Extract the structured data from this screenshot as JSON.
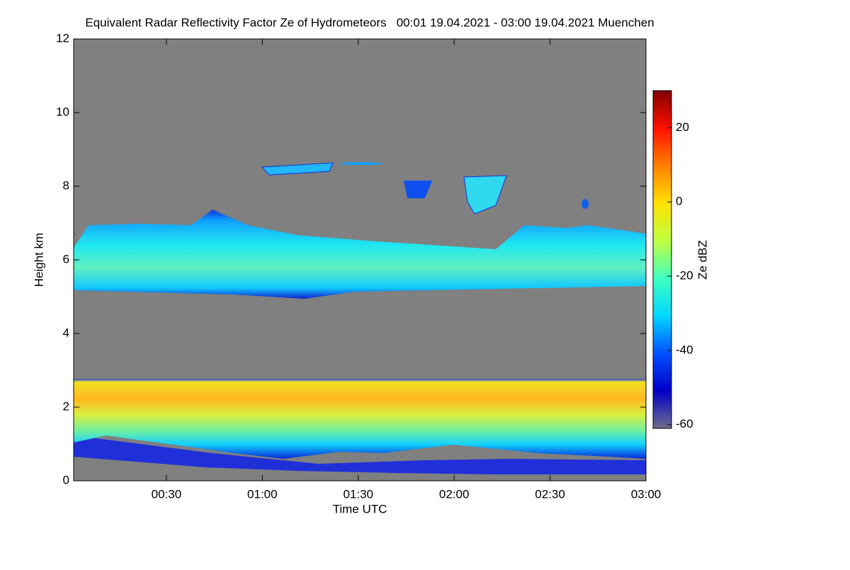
{
  "chart_data": {
    "type": "heatmap",
    "title": "Equivalent Radar Reflectivity Factor Ze of Hydrometeors   00:01 19.04.2021 - 03:00 19.04.2021 Muenchen",
    "x_label": "Time UTC",
    "y_label": "Height km",
    "xlim": [
      1,
      180
    ],
    "xticks": [
      {
        "value": 30,
        "label": "00:30"
      },
      {
        "value": 60,
        "label": "01:00"
      },
      {
        "value": 90,
        "label": "01:30"
      },
      {
        "value": 120,
        "label": "02:00"
      },
      {
        "value": 150,
        "label": "02:30"
      },
      {
        "value": 180,
        "label": "03:00"
      }
    ],
    "ylim": [
      0,
      12
    ],
    "yticks": [
      0,
      2,
      4,
      6,
      8,
      10,
      12
    ],
    "colorbar_label": "Ze dBZ",
    "clim": [
      -61,
      30
    ],
    "cticks": [
      -60,
      -40,
      -20,
      0,
      20
    ],
    "colormap": [
      "#6e6e8c",
      "#0000c8",
      "#0050ff",
      "#00d8ff",
      "#40ffc0",
      "#c0ff40",
      "#ffe000",
      "#ff8000",
      "#ff1000",
      "#800000"
    ],
    "background": "#808080"
  }
}
